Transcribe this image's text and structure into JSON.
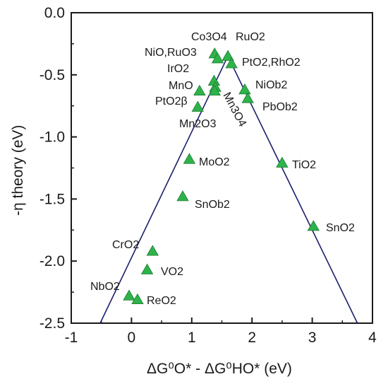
{
  "chart_data": {
    "type": "scatter",
    "title": "",
    "xlabel": "ΔG⁰O* - ΔG⁰HO* (eV)",
    "ylabel": "-η theory (eV)",
    "xlim": [
      -1,
      4
    ],
    "ylim": [
      -2.5,
      0.0
    ],
    "x_ticks": [
      -1,
      0,
      1,
      2,
      3,
      4
    ],
    "y_ticks": [
      0.0,
      -0.5,
      -1.0,
      -1.5,
      -2.0,
      -2.5
    ],
    "grid": false,
    "marker_color": "#2db34a",
    "line_color": "#1c1f6b",
    "volcano_lines": [
      {
        "x": [
          -0.52,
          1.6
        ],
        "y": [
          -2.5,
          -0.35
        ]
      },
      {
        "x": [
          1.6,
          3.75
        ],
        "y": [
          -0.35,
          -2.5
        ]
      }
    ],
    "points": [
      {
        "x": 1.38,
        "y": -0.33
      },
      {
        "x": 1.6,
        "y": -0.35
      },
      {
        "x": 1.43,
        "y": -0.37
      },
      {
        "x": 1.66,
        "y": -0.41
      },
      {
        "x": 1.37,
        "y": -0.55
      },
      {
        "x": 1.39,
        "y": -0.6
      },
      {
        "x": 1.13,
        "y": -0.63
      },
      {
        "x": 1.38,
        "y": -0.63
      },
      {
        "x": 1.88,
        "y": -0.62
      },
      {
        "x": 1.93,
        "y": -0.69
      },
      {
        "x": 1.1,
        "y": -0.76
      },
      {
        "x": 0.96,
        "y": -1.18
      },
      {
        "x": 2.5,
        "y": -1.21
      },
      {
        "x": 0.85,
        "y": -1.48
      },
      {
        "x": 3.02,
        "y": -1.72
      },
      {
        "x": 0.35,
        "y": -1.92
      },
      {
        "x": 0.26,
        "y": -2.07
      },
      {
        "x": -0.04,
        "y": -2.28
      },
      {
        "x": 0.1,
        "y": -2.31
      }
    ],
    "annotations": [
      "Co3O4",
      "RuO2",
      "NiO,RuO3",
      "PtO2,RhO2",
      "IrO2",
      "MnO",
      "NiOb2",
      "PtO2β",
      "Mn3O4",
      "PbOb2",
      "Mn2O3",
      "MoO2",
      "TiO2",
      "SnOb2",
      "SnO2",
      "CrO2",
      "VO2",
      "NbO2",
      "ReO2"
    ]
  }
}
